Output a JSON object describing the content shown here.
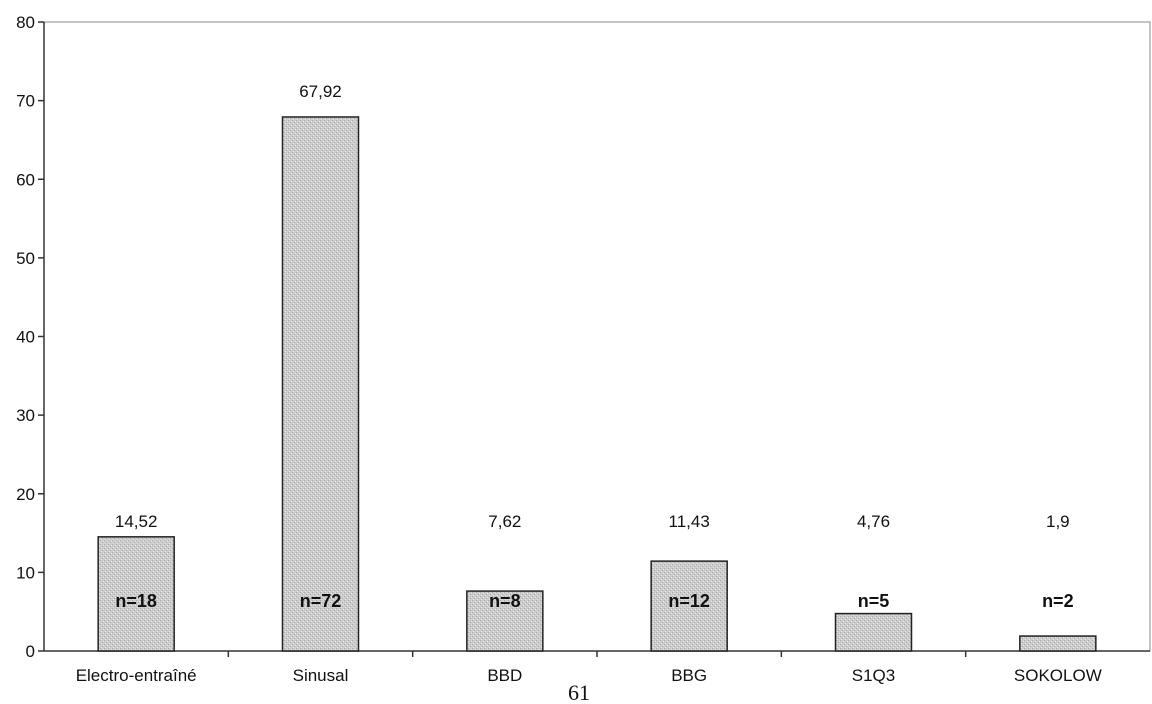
{
  "chart_data": {
    "type": "bar",
    "categories": [
      "Electro-entraîné",
      "Sinusal",
      "BBD",
      "BBG",
      "S1Q3",
      "SOKOLOW"
    ],
    "values": [
      14.52,
      67.92,
      7.62,
      11.43,
      4.76,
      1.9
    ],
    "value_labels": [
      "14,52",
      "67,92",
      "7,62",
      "11,43",
      "4,76",
      "1,9"
    ],
    "n_labels": [
      "n=18",
      "n=72",
      "n=8",
      "n=12",
      "n=5",
      "n=2"
    ],
    "ylim": [
      0,
      80
    ],
    "yticks": [
      "0",
      "10",
      "20",
      "30",
      "40",
      "50",
      "60",
      "70",
      "80"
    ],
    "grid": false,
    "bar_color": "#c9c9c9"
  },
  "page_number": "61"
}
